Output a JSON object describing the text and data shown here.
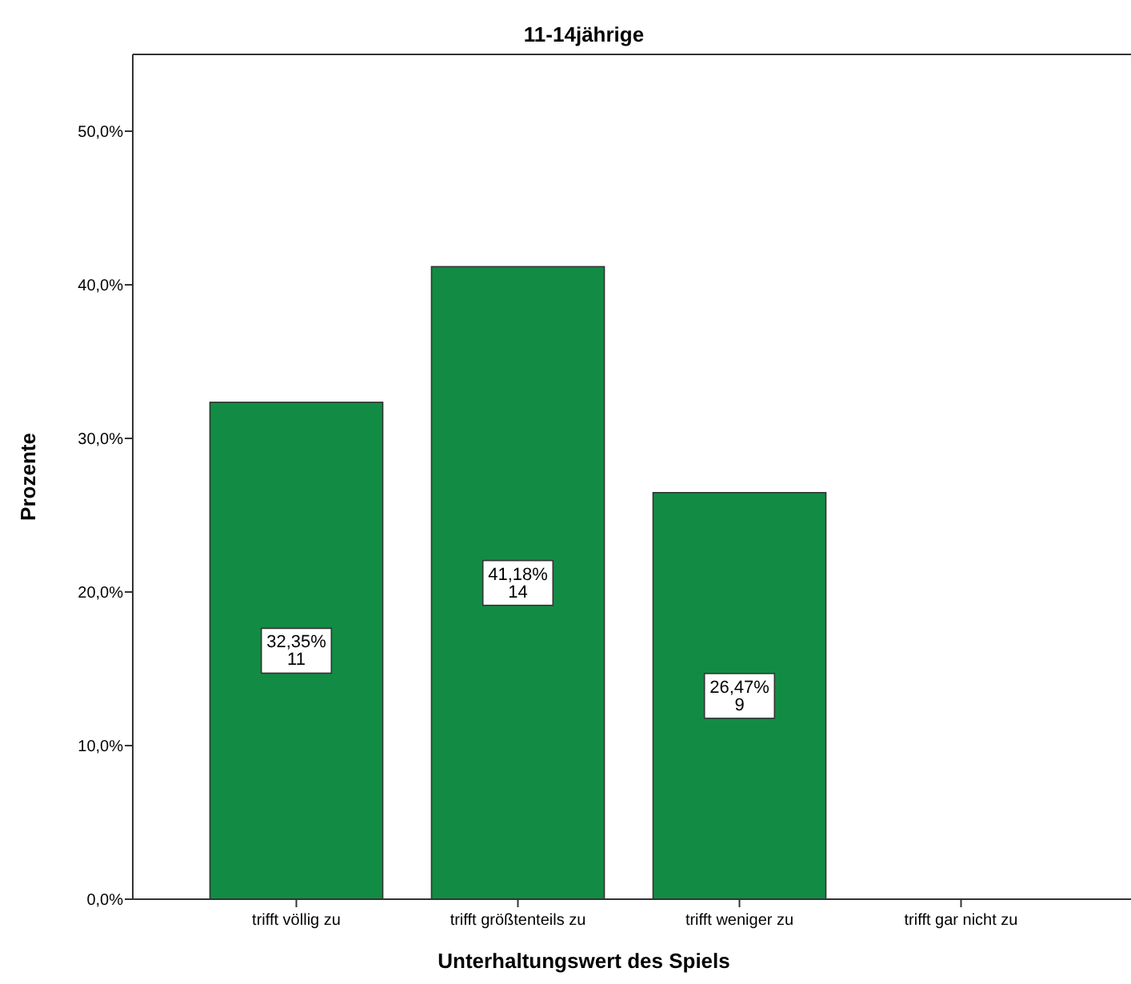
{
  "chart_data": {
    "type": "bar",
    "title": "11-14jährige",
    "xlabel": "Unterhaltungswert des Spiels",
    "ylabel": "Prozente",
    "categories": [
      "trifft völlig zu",
      "trifft größtenteils zu",
      "trifft weniger zu",
      "trifft gar nicht zu"
    ],
    "values": [
      32.35,
      41.18,
      26.47,
      0
    ],
    "value_labels": [
      "32,35%\n11",
      "41,18%\n14",
      "26,47%\n9",
      null
    ],
    "color": "#128c44",
    "ylim": [
      0,
      55
    ],
    "yticks": [
      {
        "value": 0,
        "label": "0,0%"
      },
      {
        "value": 10,
        "label": "10,0%"
      },
      {
        "value": 20,
        "label": "20,0%"
      },
      {
        "value": 30,
        "label": "30,0%"
      },
      {
        "value": 40,
        "label": "40,0%"
      },
      {
        "value": 50,
        "label": "50,0%"
      }
    ],
    "grid": false
  }
}
